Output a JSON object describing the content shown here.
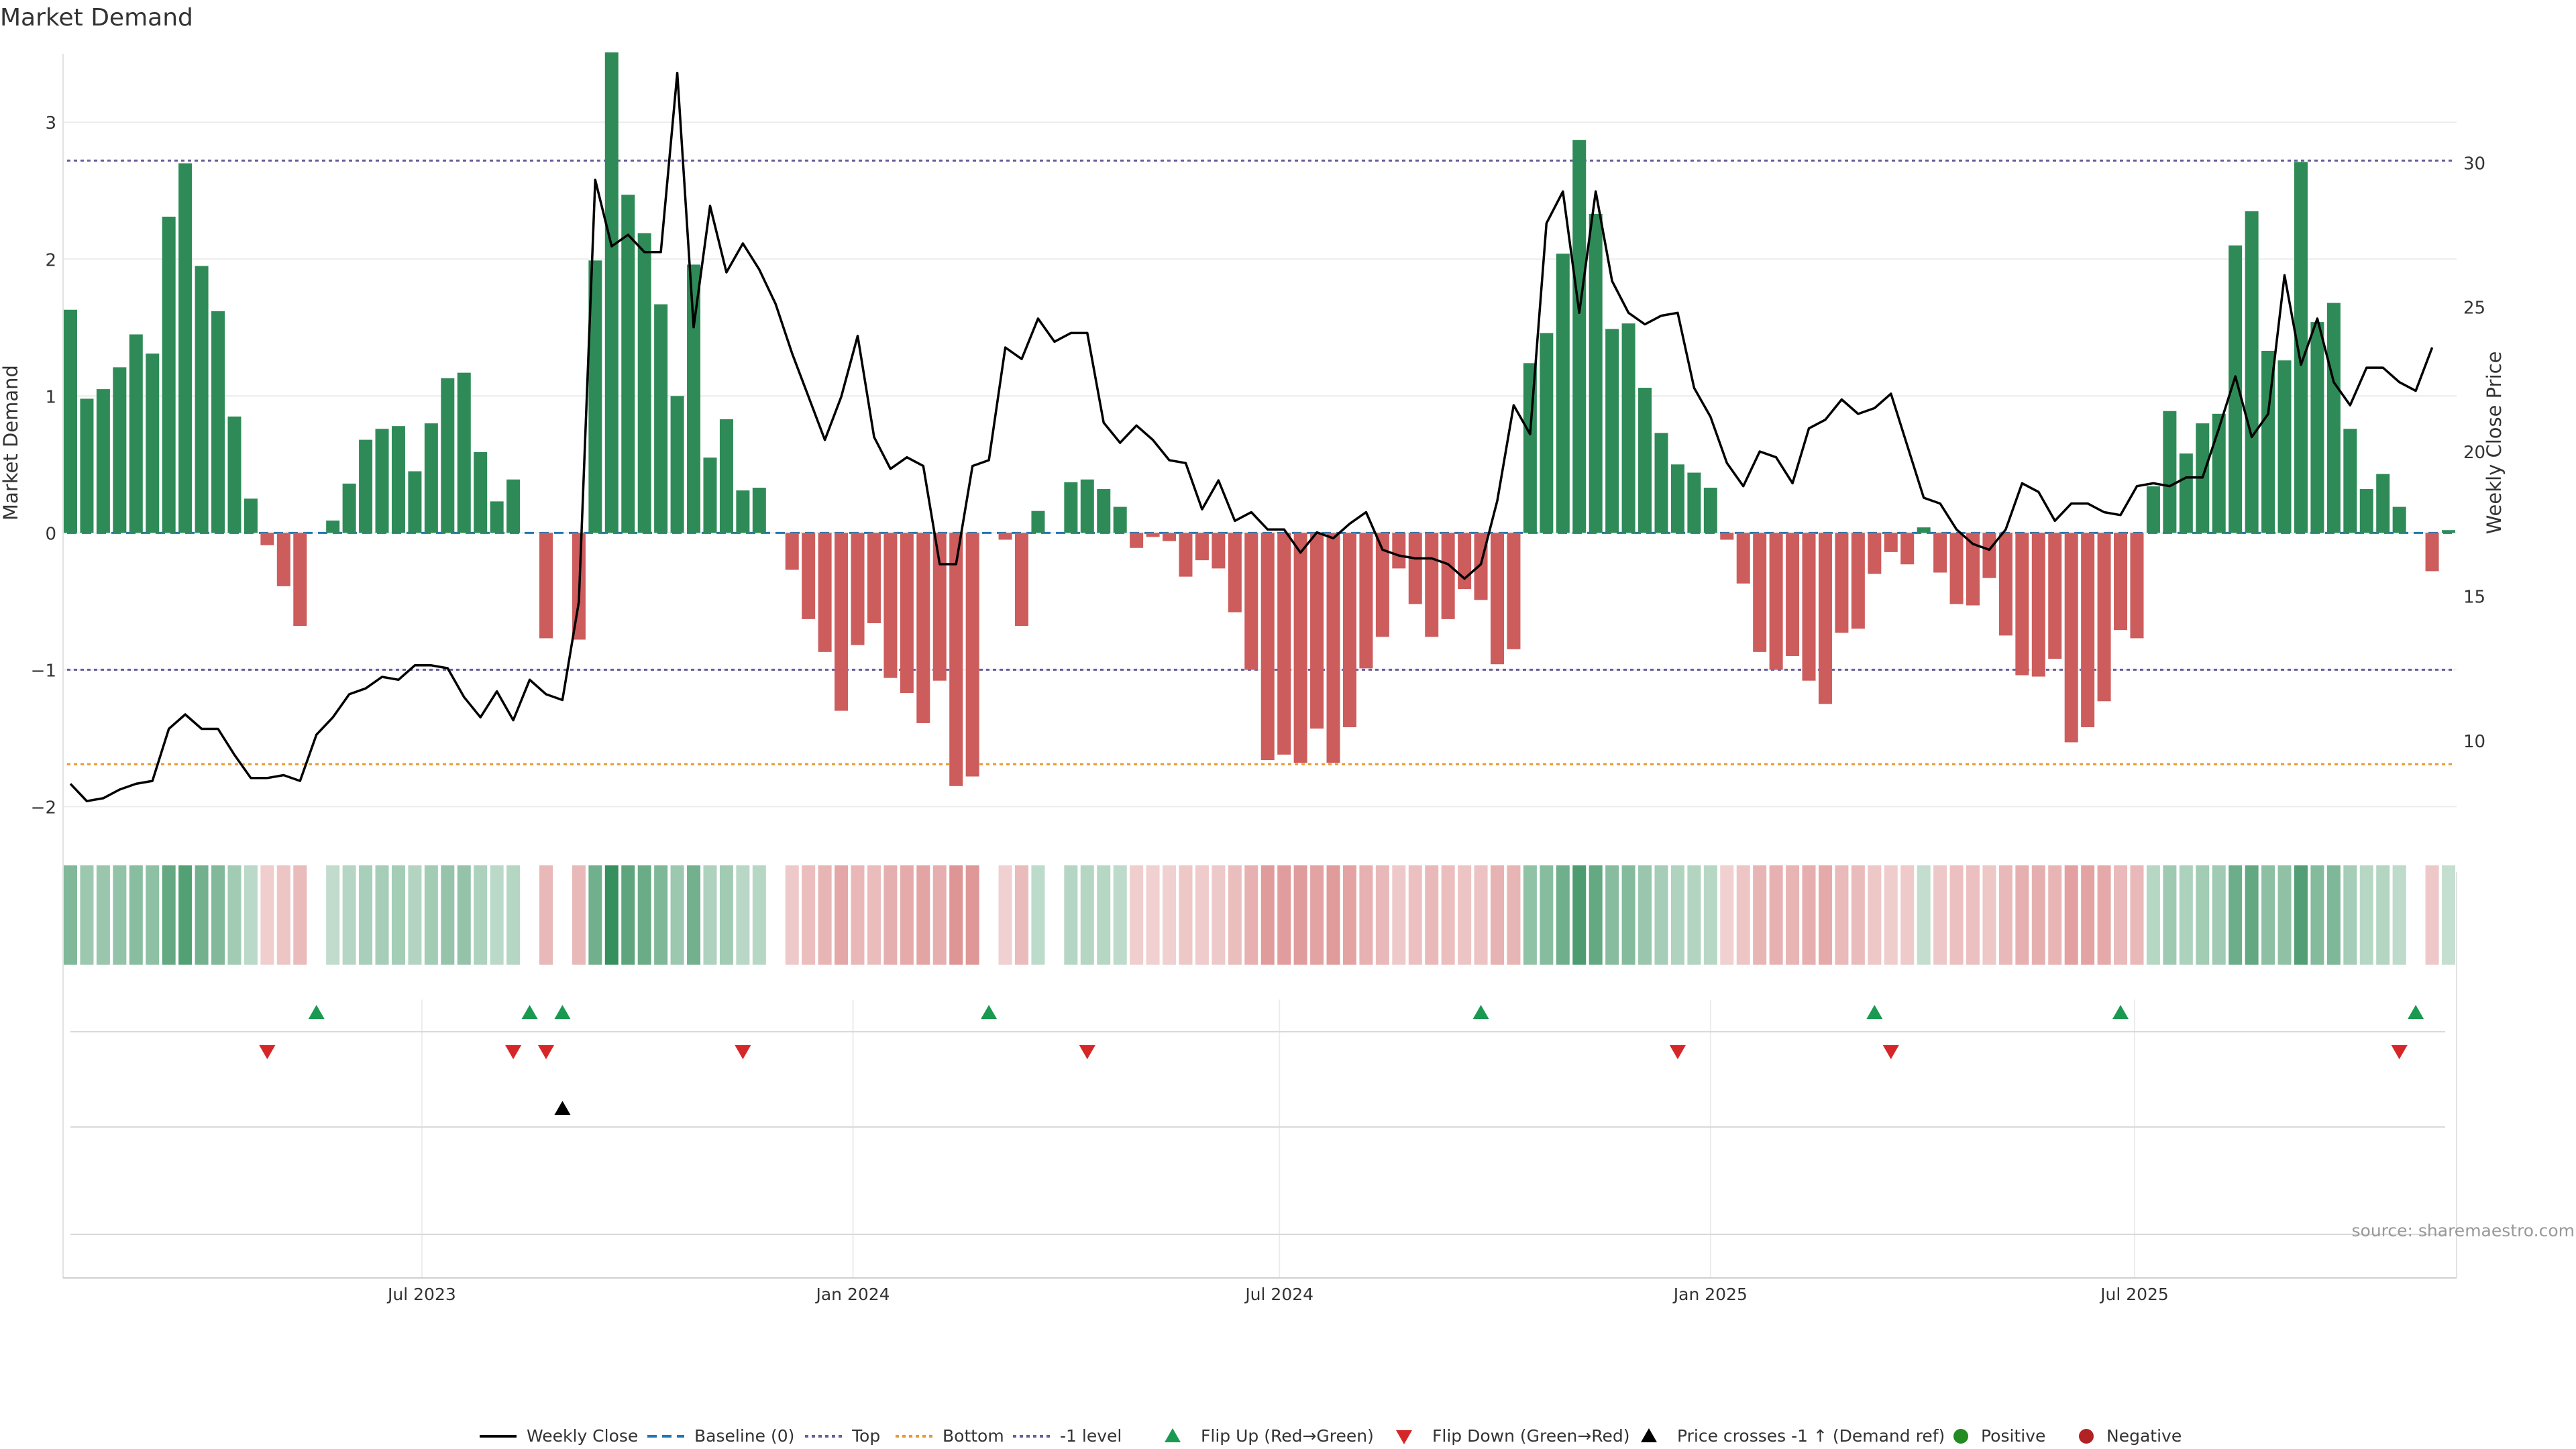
{
  "chart_data": {
    "type": "bar",
    "title": "Market Demand",
    "ylabel": "Market Demand",
    "y2label": "Weekly Close Price",
    "source": "source: sharemaestro.com",
    "ylim": [
      -2.15,
      3.55
    ],
    "y_ticks": [
      -2,
      -1,
      0,
      1,
      2,
      3
    ],
    "y2lim": [
      7,
      34
    ],
    "y2_ticks": [
      10,
      15,
      20,
      25,
      30
    ],
    "x_start": "2023-02-01",
    "x_step_days": 7,
    "x_ticks": [
      {
        "date": "2023-07-01",
        "label": "Jul 2023"
      },
      {
        "date": "2024-01-01",
        "label": "Jan 2024"
      },
      {
        "date": "2024-07-01",
        "label": "Jul 2024"
      },
      {
        "date": "2025-01-01",
        "label": "Jan 2025"
      },
      {
        "date": "2025-07-01",
        "label": "Jul 2025"
      }
    ],
    "levels": {
      "baseline": 0,
      "top": 2.72,
      "bottom": -1.69,
      "minus_one": -1
    },
    "colors": {
      "positive": "#2e8b57",
      "negative": "#cd5c5c",
      "price": "#000000",
      "baseline": "#1f77b4",
      "top": "#6a5a9a",
      "bottom": "#e69a30",
      "minus_one": "#6a5a9a",
      "flip_up": "#1a9a50",
      "flip_down": "#d62728",
      "cross": "#000000",
      "legend_positive": "#228b22",
      "legend_negative": "#b22222"
    },
    "series": [
      {
        "name": "Market Demand",
        "values": [
          1.63,
          0.98,
          1.05,
          1.21,
          1.45,
          1.31,
          2.31,
          2.7,
          1.95,
          1.62,
          0.85,
          0.25,
          -0.09,
          -0.39,
          -0.68,
          0.0,
          0.09,
          0.36,
          0.68,
          0.76,
          0.78,
          0.45,
          0.8,
          1.13,
          1.17,
          0.59,
          0.23,
          0.39,
          0.0,
          -0.77,
          0.0,
          -0.78,
          1.99,
          3.51,
          2.47,
          2.19,
          1.67,
          1.0,
          1.96,
          0.55,
          0.83,
          0.31,
          0.33,
          0.0,
          -0.27,
          -0.63,
          -0.87,
          -1.3,
          -0.82,
          -0.66,
          -1.06,
          -1.17,
          -1.39,
          -1.08,
          -1.85,
          -1.78,
          0.0,
          -0.05,
          -0.68,
          0.16,
          0.0,
          0.37,
          0.39,
          0.32,
          0.19,
          -0.11,
          -0.03,
          -0.06,
          -0.32,
          -0.2,
          -0.26,
          -0.58,
          -1.0,
          -1.66,
          -1.62,
          -1.68,
          -1.43,
          -1.68,
          -1.42,
          -0.99,
          -0.76,
          -0.26,
          -0.52,
          -0.76,
          -0.63,
          -0.41,
          -0.49,
          -0.96,
          -0.85,
          1.24,
          1.46,
          2.04,
          2.87,
          2.33,
          1.49,
          1.53,
          1.06,
          0.73,
          0.5,
          0.44,
          0.33,
          -0.05,
          -0.37,
          -0.87,
          -1.0,
          -0.9,
          -1.08,
          -1.25,
          -0.73,
          -0.7,
          -0.3,
          -0.14,
          -0.23,
          0.04,
          -0.29,
          -0.52,
          -0.53,
          -0.33,
          -0.75,
          -1.04,
          -1.05,
          -0.92,
          -1.53,
          -1.42,
          -1.23,
          -0.71,
          -0.77,
          0.34,
          0.89,
          0.58,
          0.8,
          0.87,
          2.1,
          2.35,
          1.33,
          1.26,
          2.71,
          1.54,
          1.68,
          0.76,
          0.32,
          0.43,
          0.19,
          0.0,
          -0.28,
          0.02
        ]
      },
      {
        "name": "Weekly Close",
        "values": [
          8.5,
          7.9,
          8.0,
          8.3,
          8.5,
          8.6,
          10.4,
          10.9,
          10.4,
          10.4,
          9.5,
          8.7,
          8.7,
          8.8,
          8.6,
          10.2,
          10.8,
          11.6,
          11.8,
          12.2,
          12.1,
          12.6,
          12.6,
          12.5,
          11.5,
          10.8,
          11.7,
          10.7,
          12.1,
          11.6,
          11.4,
          14.8,
          29.4,
          27.1,
          27.5,
          26.9,
          26.9,
          33.1,
          24.3,
          28.5,
          26.2,
          27.2,
          26.3,
          25.1,
          23.4,
          21.9,
          20.4,
          21.9,
          24.0,
          20.5,
          19.4,
          19.8,
          19.5,
          16.1,
          16.1,
          19.5,
          19.7,
          23.6,
          23.2,
          24.6,
          23.8,
          24.1,
          24.1,
          21.0,
          20.3,
          20.9,
          20.4,
          19.7,
          19.6,
          18.0,
          19.0,
          17.6,
          17.9,
          17.3,
          17.3,
          16.5,
          17.2,
          17.0,
          17.5,
          17.9,
          16.6,
          16.4,
          16.3,
          16.3,
          16.1,
          15.6,
          16.1,
          18.3,
          21.6,
          20.6,
          27.9,
          29.0,
          24.8,
          29.0,
          25.9,
          24.8,
          24.4,
          24.7,
          24.8,
          22.2,
          21.2,
          19.6,
          18.8,
          20.0,
          19.8,
          18.9,
          20.8,
          21.1,
          21.8,
          21.3,
          21.5,
          22.0,
          20.2,
          18.4,
          18.2,
          17.3,
          16.8,
          16.6,
          17.3,
          18.9,
          18.6,
          17.6,
          18.2,
          18.2,
          17.9,
          17.8,
          18.8,
          18.9,
          18.8,
          19.1,
          19.1,
          20.8,
          22.6,
          20.5,
          21.3,
          26.1,
          23.0,
          24.6,
          22.4,
          21.6,
          22.9,
          22.9,
          22.4,
          22.1,
          23.6
        ]
      }
    ],
    "flip_up_weeks": [
      15,
      28,
      30,
      56,
      86,
      110,
      125,
      143
    ],
    "flip_down_weeks": [
      12,
      27,
      29,
      41,
      62,
      98,
      111,
      142
    ],
    "cross_up_weeks": [
      30
    ],
    "legend": [
      "Weekly Close",
      "Baseline (0)",
      "Top",
      "Bottom",
      "-1 level",
      "Flip Up (Red→Green)",
      "Flip Down (Green→Red)",
      "Price crosses -1 ↑ (Demand ref)",
      "Positive",
      "Negative"
    ],
    "legend_placement": "bottom"
  }
}
